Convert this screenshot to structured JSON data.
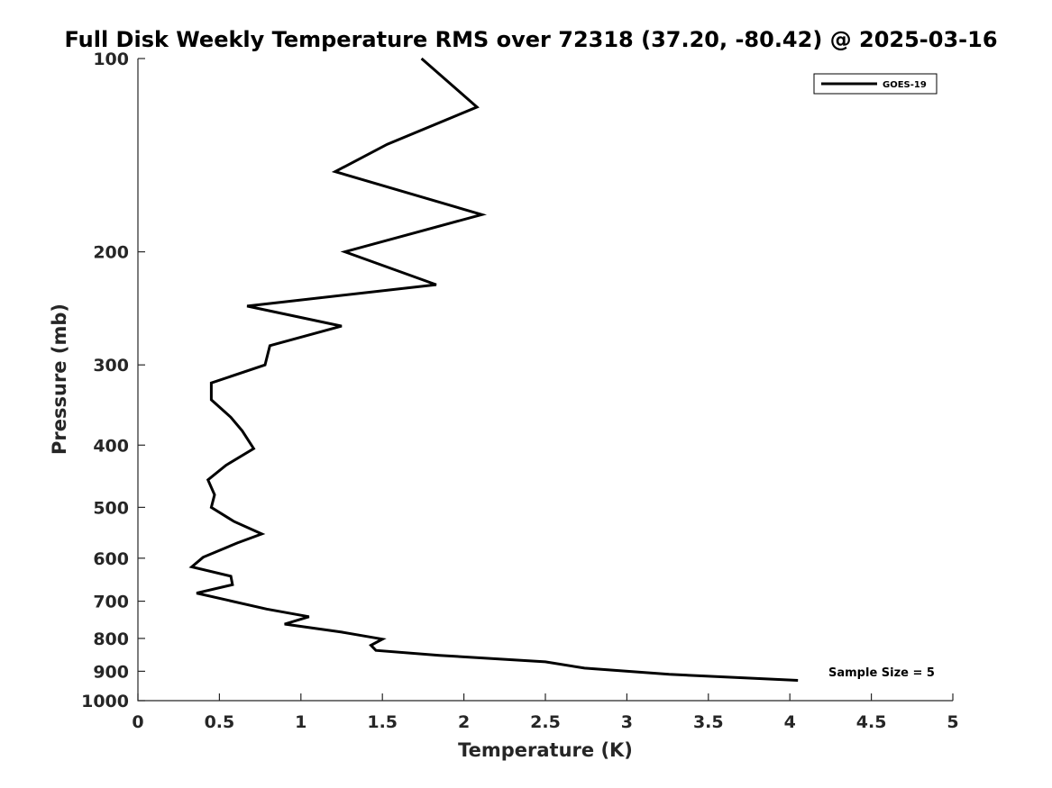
{
  "chart_data": {
    "type": "line",
    "title": "Full Disk Weekly Temperature RMS over 72318 (37.20, -80.42) @ 2025-03-16",
    "xlabel": "Temperature (K)",
    "ylabel": "Pressure (mb)",
    "xlim": [
      0,
      5
    ],
    "ylim": [
      100,
      1000
    ],
    "yscale": "log",
    "y_reversed": true,
    "grid": false,
    "legend_position": "top-right",
    "x_ticks": [
      "0",
      "0.5",
      "1",
      "1.5",
      "2",
      "2.5",
      "3",
      "3.5",
      "4",
      "4.5",
      "5"
    ],
    "y_ticks": [
      "100",
      "200",
      "300",
      "400",
      "500",
      "600",
      "700",
      "800",
      "900",
      "1000"
    ],
    "series": [
      {
        "name": "GOES-19",
        "color": "#000000",
        "x": [
          1.74,
          2.08,
          1.53,
          1.21,
          2.11,
          1.27,
          1.83,
          0.67,
          1.25,
          0.81,
          0.78,
          0.45,
          0.45,
          0.57,
          0.64,
          0.71,
          0.54,
          0.43,
          0.47,
          0.45,
          0.59,
          0.76,
          0.61,
          0.4,
          0.33,
          0.57,
          0.58,
          0.36,
          0.79,
          1.05,
          0.9,
          1.25,
          1.5,
          1.43,
          1.46,
          1.85,
          2.5,
          2.74,
          3.26,
          4.05
        ],
        "y": [
          100,
          119,
          136,
          150,
          175,
          200,
          225,
          243,
          261,
          280,
          300,
          320,
          340,
          362,
          380,
          405,
          430,
          453,
          478,
          500,
          526,
          550,
          568,
          598,
          619,
          640,
          660,
          680,
          720,
          740,
          760,
          782,
          802,
          820,
          835,
          850,
          870,
          890,
          910,
          930
        ]
      }
    ],
    "annotations": [
      {
        "text": "Sample Size = 5"
      }
    ]
  }
}
